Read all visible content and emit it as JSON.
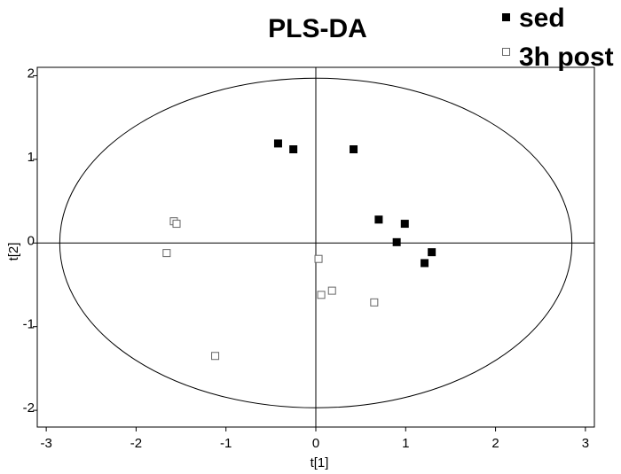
{
  "chart_data": {
    "type": "scatter",
    "title": "PLS-DA",
    "xlabel": "t[1]",
    "ylabel": "t[2]",
    "xlim": [
      -3.1,
      3.1
    ],
    "ylim": [
      -2.2,
      2.1
    ],
    "xticks": [
      -3,
      -2,
      -1,
      0,
      1,
      2,
      3
    ],
    "yticks": [
      -2,
      -1,
      0,
      1,
      2
    ],
    "legend_position": "top-right",
    "ellipse": {
      "center": [
        0,
        0
      ],
      "rx": 2.85,
      "ry": 1.97,
      "color": "#000000"
    },
    "reference_lines": {
      "x": 0,
      "y": 0
    },
    "series": [
      {
        "name": "sed",
        "marker": "filled-square",
        "color": "#000000",
        "points": [
          [
            -0.42,
            1.19
          ],
          [
            -0.25,
            1.12
          ],
          [
            0.42,
            1.12
          ],
          [
            0.7,
            0.28
          ],
          [
            0.99,
            0.23
          ],
          [
            0.9,
            0.01
          ],
          [
            1.29,
            -0.11
          ],
          [
            1.21,
            -0.24
          ]
        ]
      },
      {
        "name": "3h post",
        "marker": "open-square",
        "color": "#666666",
        "points": [
          [
            -1.58,
            0.26
          ],
          [
            -1.55,
            0.23
          ],
          [
            -1.66,
            -0.12
          ],
          [
            0.03,
            -0.19
          ],
          [
            0.06,
            -0.62
          ],
          [
            0.18,
            -0.57
          ],
          [
            0.65,
            -0.71
          ],
          [
            -1.12,
            -1.35
          ]
        ]
      }
    ]
  }
}
